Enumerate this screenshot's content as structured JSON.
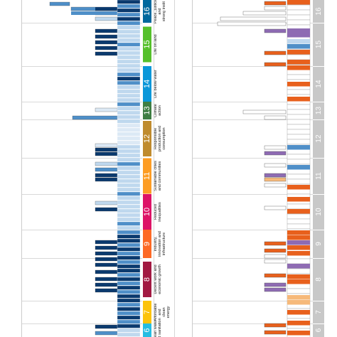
{
  "chart_data": {
    "type": "bar",
    "note_visible_labels_only": true,
    "goals": [
      {
        "num": "6",
        "name": [
          "Clean water",
          "and sanitation"
        ],
        "color": "#26BDE2"
      },
      {
        "num": "7",
        "name": [
          "Affordable",
          "and",
          "clean",
          "energy"
        ],
        "color": "#FCC30B"
      },
      {
        "num": "8",
        "name": [
          "Decent work and",
          "economic growth"
        ],
        "color": "#A21942"
      },
      {
        "num": "9",
        "name": [
          "Industry,",
          "innovation and",
          "infrastructure"
        ],
        "color": "#FD6925"
      },
      {
        "num": "10",
        "name": [
          "Reduced",
          "inequalities"
        ],
        "color": "#DD1367"
      },
      {
        "num": "11",
        "name": [
          "Sustainable cities",
          "and communities"
        ],
        "color": "#FD9D24"
      },
      {
        "num": "12",
        "name": [
          "Responsible",
          "production and",
          "consumption"
        ],
        "color": "#BF8B2E"
      },
      {
        "num": "13",
        "name": [
          "Climate",
          "action"
        ],
        "color": "#3F7E44"
      },
      {
        "num": "14",
        "name": [
          "Life below water"
        ],
        "color": "#0A97D9"
      },
      {
        "num": "15",
        "name": [
          "Life on land"
        ],
        "color": "#56C02B"
      },
      {
        "num": "16",
        "name": [
          "Peace, justice",
          "and",
          "strong instit"
        ],
        "color": "#00689D"
      }
    ],
    "left_panel": {
      "label": "",
      "rows": [
        {
          "goal": "16",
          "bars": [
            70,
            35,
            28,
            0,
            22,
            30,
            0,
            0
          ]
        },
        {
          "goal": "15",
          "bars": [
            33,
            33,
            33,
            33,
            33,
            0,
            0,
            0
          ]
        },
        {
          "goal": "14",
          "bars": [
            0,
            0,
            0,
            0,
            0,
            0,
            0,
            0
          ]
        },
        {
          "goal": "13",
          "bars": [
            33,
            33,
            63
          ]
        },
        {
          "goal": "12",
          "bars": [
            0,
            33,
            33,
            33,
            33
          ]
        },
        {
          "goal": "11",
          "bars": [
            33,
            33,
            33,
            33,
            33
          ]
        },
        {
          "goal": "10",
          "bars": [
            33,
            33
          ]
        },
        {
          "goal": "9",
          "bars": [
            33,
            33,
            33,
            33,
            33,
            33
          ]
        },
        {
          "goal": "8",
          "bars": [
            33,
            33,
            33,
            33
          ]
        },
        {
          "goal": "7",
          "bars": [
            0,
            0
          ]
        },
        {
          "goal": "6",
          "bars": [
            33,
            33
          ]
        }
      ]
    },
    "right_panel": {
      "label": "",
      "rows": [
        {
          "goal": "16",
          "bars": [
            60,
            30,
            30,
            30
          ]
        },
        {
          "goal": "15",
          "bars": [
            30,
            30,
            30
          ]
        },
        {
          "goal": "14",
          "bars": [
            30
          ]
        },
        {
          "goal": "13",
          "bars": [
            60,
            30
          ]
        },
        {
          "goal": "12",
          "bars": [
            30,
            30
          ]
        },
        {
          "goal": "11",
          "bars": [
            30,
            30,
            30
          ]
        },
        {
          "goal": "10",
          "bars": [
            30,
            30,
            30
          ]
        },
        {
          "goal": "9",
          "bars": [
            30,
            30,
            30,
            30
          ]
        },
        {
          "goal": "8",
          "bars": [
            30,
            30,
            30
          ]
        },
        {
          "goal": "7",
          "bars": [
            30
          ]
        },
        {
          "goal": "6",
          "bars": [
            30,
            30
          ]
        }
      ]
    },
    "colors": {
      "navy": "#0B3A6E",
      "mid_blue": "#4F8FC8",
      "light_blue": "#BFD8EE",
      "pale_blue": "#DCE9F5",
      "orange": "#E8601C",
      "purple": "#8E6BB3",
      "peach": "#F6B97A",
      "right_strip": "#C8C8C8",
      "grid": "#CCCCCC"
    }
  }
}
